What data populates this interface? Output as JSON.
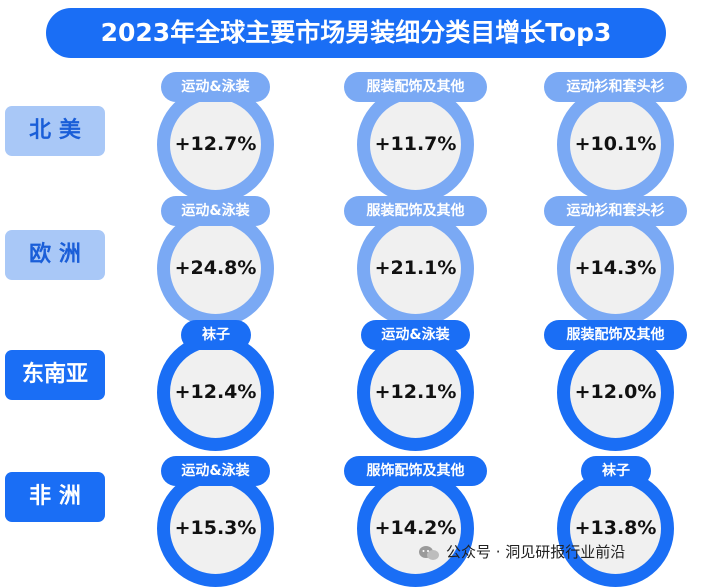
{
  "title": "2023年全球主要市场男装细分类目增长Top3",
  "watermark": "公众号 · 洞见研报行业前沿",
  "colors": {
    "dark_blue": "#1a6ef5",
    "light_blue": "#7aa9f4",
    "region_light_bg": "#a9c8f7"
  },
  "chart_data": {
    "type": "table",
    "title": "2023年全球主要市场男装细分类目增长Top3",
    "rows": [
      {
        "region": "北 美",
        "style": "light",
        "items": [
          {
            "category": "运动&泳装",
            "growth": "+12.7%"
          },
          {
            "category": "服装配饰及其他",
            "growth": "+11.7%"
          },
          {
            "category": "运动衫和套头衫",
            "growth": "+10.1%"
          }
        ]
      },
      {
        "region": "欧 洲",
        "style": "light",
        "items": [
          {
            "category": "运动&泳装",
            "growth": "+24.8%"
          },
          {
            "category": "服装配饰及其他",
            "growth": "+21.1%"
          },
          {
            "category": "运动衫和套头衫",
            "growth": "+14.3%"
          }
        ]
      },
      {
        "region": "东南亚",
        "style": "dark",
        "items": [
          {
            "category": "袜子",
            "growth": "+12.4%"
          },
          {
            "category": "运动&泳装",
            "growth": "+12.1%"
          },
          {
            "category": "服装配饰及其他",
            "growth": "+12.0%"
          }
        ]
      },
      {
        "region": "非 洲",
        "style": "dark",
        "items": [
          {
            "category": "运动&泳装",
            "growth": "+15.3%"
          },
          {
            "category": "服饰配饰及其他",
            "growth": "+14.2%"
          },
          {
            "category": "袜子",
            "growth": "+13.8%"
          }
        ]
      }
    ]
  }
}
